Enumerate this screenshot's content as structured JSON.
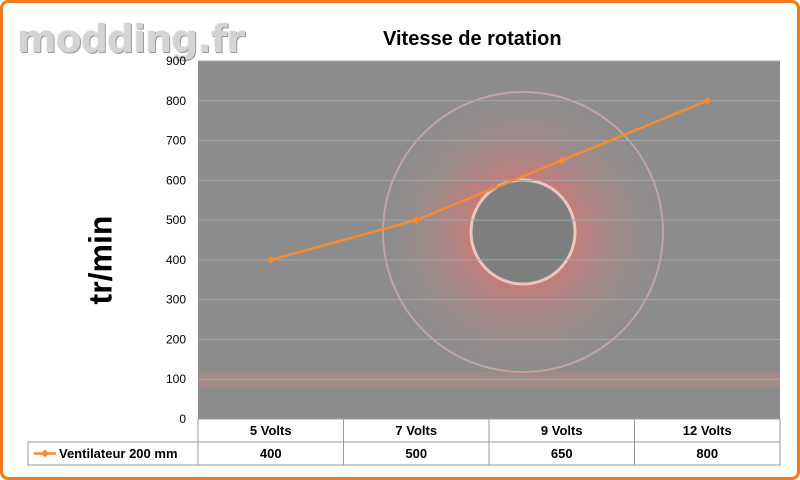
{
  "watermark": "modding.fr",
  "chart_data": {
    "type": "line",
    "title": "Vitesse de rotation",
    "ylabel": "tr/min",
    "xlabel": "",
    "categories": [
      "5 Volts",
      "7 Volts",
      "9 Volts",
      "12 Volts"
    ],
    "series": [
      {
        "name": "Ventilateur 200 mm",
        "values": [
          400,
          500,
          650,
          800
        ],
        "color": "#f58a2e"
      }
    ],
    "ylim": [
      0,
      900
    ],
    "yticks": [
      0,
      100,
      200,
      300,
      400,
      500,
      600,
      700,
      800,
      900
    ],
    "grid": true,
    "legend": "data-table",
    "plot_background": "#8c8c8c"
  }
}
